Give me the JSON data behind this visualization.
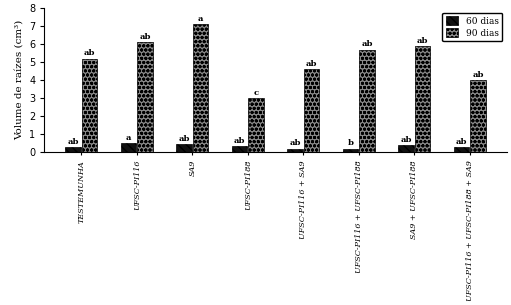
{
  "categories": [
    "TESTEMUNHA",
    "UFSC-PI116",
    "SA9",
    "UFSC-PI188",
    "UFSC-PI116 + SA9",
    "UFSC-PI116 + UFSC-PI188",
    "SA9 + UFSC-PI188",
    "UFSC-PI116 + UFSC-PI188 + SA9"
  ],
  "values_60": [
    0.3,
    0.5,
    0.45,
    0.35,
    0.2,
    0.2,
    0.38,
    0.3
  ],
  "values_90": [
    5.2,
    6.1,
    7.1,
    3.0,
    4.6,
    5.7,
    5.9,
    4.0
  ],
  "labels_60": [
    "ab",
    "a",
    "ab",
    "ab",
    "ab",
    "b",
    "ab",
    "ab"
  ],
  "labels_90": [
    "ab",
    "ab",
    "a",
    "c",
    "ab",
    "ab",
    "ab",
    "ab"
  ],
  "ylabel": "Volume de raízes (cm³)",
  "ylim": [
    0,
    8
  ],
  "yticks": [
    0,
    1,
    2,
    3,
    4,
    5,
    6,
    7,
    8
  ],
  "legend_60": "60 dias",
  "legend_90": "90 dias",
  "bar_width": 0.28,
  "color_60": "#111111",
  "color_90": "#888888",
  "hatch_60": "\\\\\\\\",
  "hatch_90": "oooo"
}
